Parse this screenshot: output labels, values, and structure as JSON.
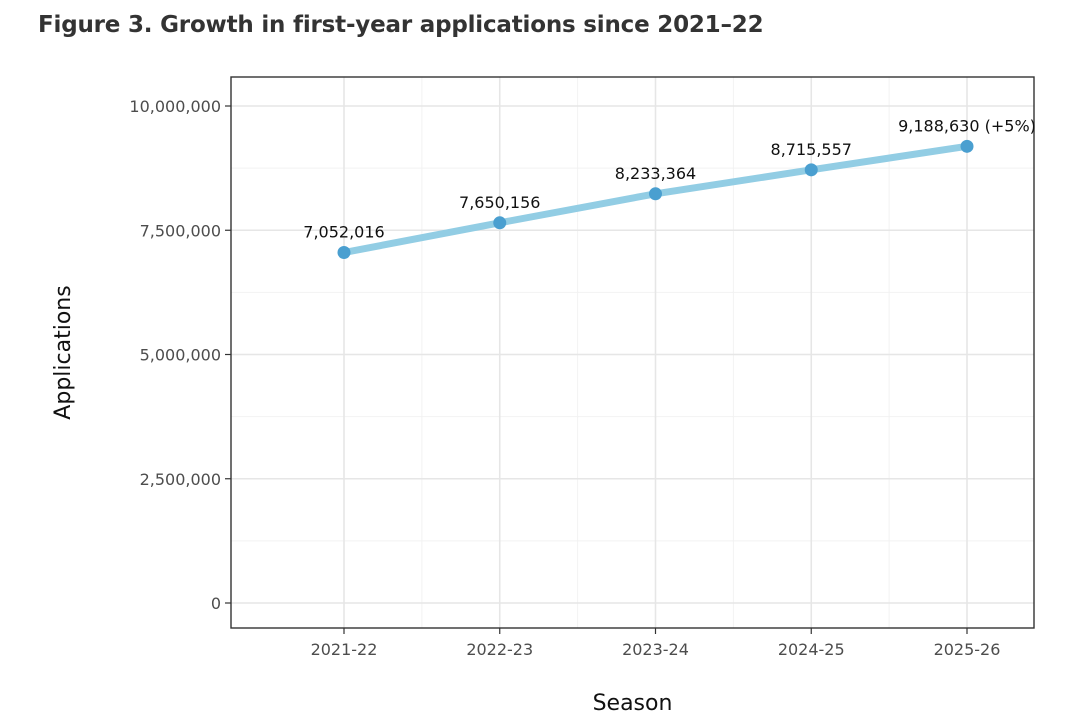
{
  "figure": {
    "title": "Figure 3. Growth in first-year applications since 2021–22"
  },
  "colors": {
    "line": "#92cde4",
    "point": "#4a9fd0",
    "grid_major": "#e6e6e6",
    "grid_minor": "#f2f2f2",
    "frame": "#333333"
  },
  "chart_data": {
    "type": "line",
    "title": "Figure 3. Growth in first-year applications since 2021–22",
    "xlabel": "Season",
    "ylabel": "Applications",
    "categories": [
      "2021-22",
      "2022-23",
      "2023-24",
      "2024-25",
      "2025-26"
    ],
    "series": [
      {
        "values": [
          7052016,
          7650156,
          8233364,
          8715557,
          9188630
        ],
        "labels": [
          "7,052,016",
          "7,650,156",
          "8,233,364",
          "8,715,557",
          "9,188,630 (+5%)"
        ]
      }
    ],
    "ylim": [
      0,
      10000000
    ],
    "yticks": [
      0,
      2500000,
      5000000,
      7500000,
      10000000
    ],
    "ytick_labels": [
      "0",
      "2,500,000",
      "5,000,000",
      "7,500,000",
      "10,000,000"
    ],
    "grid": true,
    "legend": "none"
  }
}
